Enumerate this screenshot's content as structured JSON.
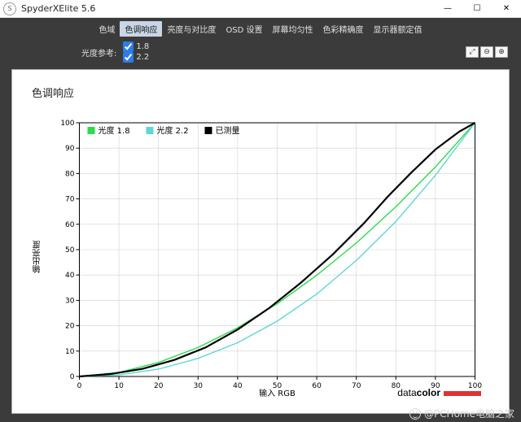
{
  "window": {
    "title": "SpyderXElite 5.6",
    "icon_label": "S"
  },
  "tabs": [
    {
      "label": "色域",
      "active": false
    },
    {
      "label": "色调响应",
      "active": true
    },
    {
      "label": "亮度与对比度",
      "active": false
    },
    {
      "label": "OSD 设置",
      "active": false
    },
    {
      "label": "屏幕均匀性",
      "active": false
    },
    {
      "label": "色彩精确度",
      "active": false
    },
    {
      "label": "显示器额定值",
      "active": false
    }
  ],
  "options": {
    "label": "光度参考:",
    "choices": [
      {
        "value": "1.8",
        "checked": true
      },
      {
        "value": "2.2",
        "checked": true
      }
    ]
  },
  "zoom": {
    "items": [
      "⤢",
      "⊖",
      "⊕"
    ]
  },
  "chart": {
    "title": "色调响应",
    "x_label": "输入  RGB",
    "y_label": "输出亮度",
    "xlim": [
      0,
      100
    ],
    "ylim": [
      0,
      100
    ],
    "xtick_step": 10,
    "ytick_step": 10,
    "grid_color": "#d0d0d0",
    "axis_color": "#000000",
    "background_color": "#ffffff",
    "axis_fontsize": 9,
    "legend": [
      {
        "name": "光度 1.8",
        "color": "#2adb4a"
      },
      {
        "name": "光度 2.2",
        "color": "#5fd6d6"
      },
      {
        "name": "已测量",
        "color": "#000000"
      }
    ],
    "series": {
      "gamma_1_8": {
        "color": "#2adb4a",
        "width": 1.4,
        "points": [
          [
            0,
            0
          ],
          [
            10,
            1.6
          ],
          [
            20,
            5.5
          ],
          [
            30,
            11.4
          ],
          [
            40,
            19.2
          ],
          [
            50,
            28.7
          ],
          [
            60,
            39.9
          ],
          [
            70,
            52.6
          ],
          [
            80,
            66.9
          ],
          [
            90,
            82.6
          ],
          [
            100,
            100
          ]
        ]
      },
      "gamma_2_2": {
        "color": "#5fd6d6",
        "width": 1.4,
        "points": [
          [
            0,
            0
          ],
          [
            10,
            0.6
          ],
          [
            20,
            2.9
          ],
          [
            30,
            7.1
          ],
          [
            40,
            13.3
          ],
          [
            50,
            21.8
          ],
          [
            60,
            32.5
          ],
          [
            70,
            45.7
          ],
          [
            80,
            61.1
          ],
          [
            90,
            79.3
          ],
          [
            100,
            100
          ]
        ]
      },
      "measured": {
        "color": "#000000",
        "width": 2.2,
        "points": [
          [
            0,
            0
          ],
          [
            8,
            1.0
          ],
          [
            16,
            3.0
          ],
          [
            24,
            6.5
          ],
          [
            32,
            11.5
          ],
          [
            40,
            18.5
          ],
          [
            48,
            27.0
          ],
          [
            56,
            37.0
          ],
          [
            64,
            48.0
          ],
          [
            72,
            60.5
          ],
          [
            78,
            71.0
          ],
          [
            84,
            80.5
          ],
          [
            90,
            89.5
          ],
          [
            96,
            96.5
          ],
          [
            100,
            100
          ]
        ]
      }
    },
    "brand": {
      "prefix": "data",
      "bold": "color",
      "bar_color": "#d33333"
    }
  },
  "weibo_watermark": "@PCHome电脑之家"
}
